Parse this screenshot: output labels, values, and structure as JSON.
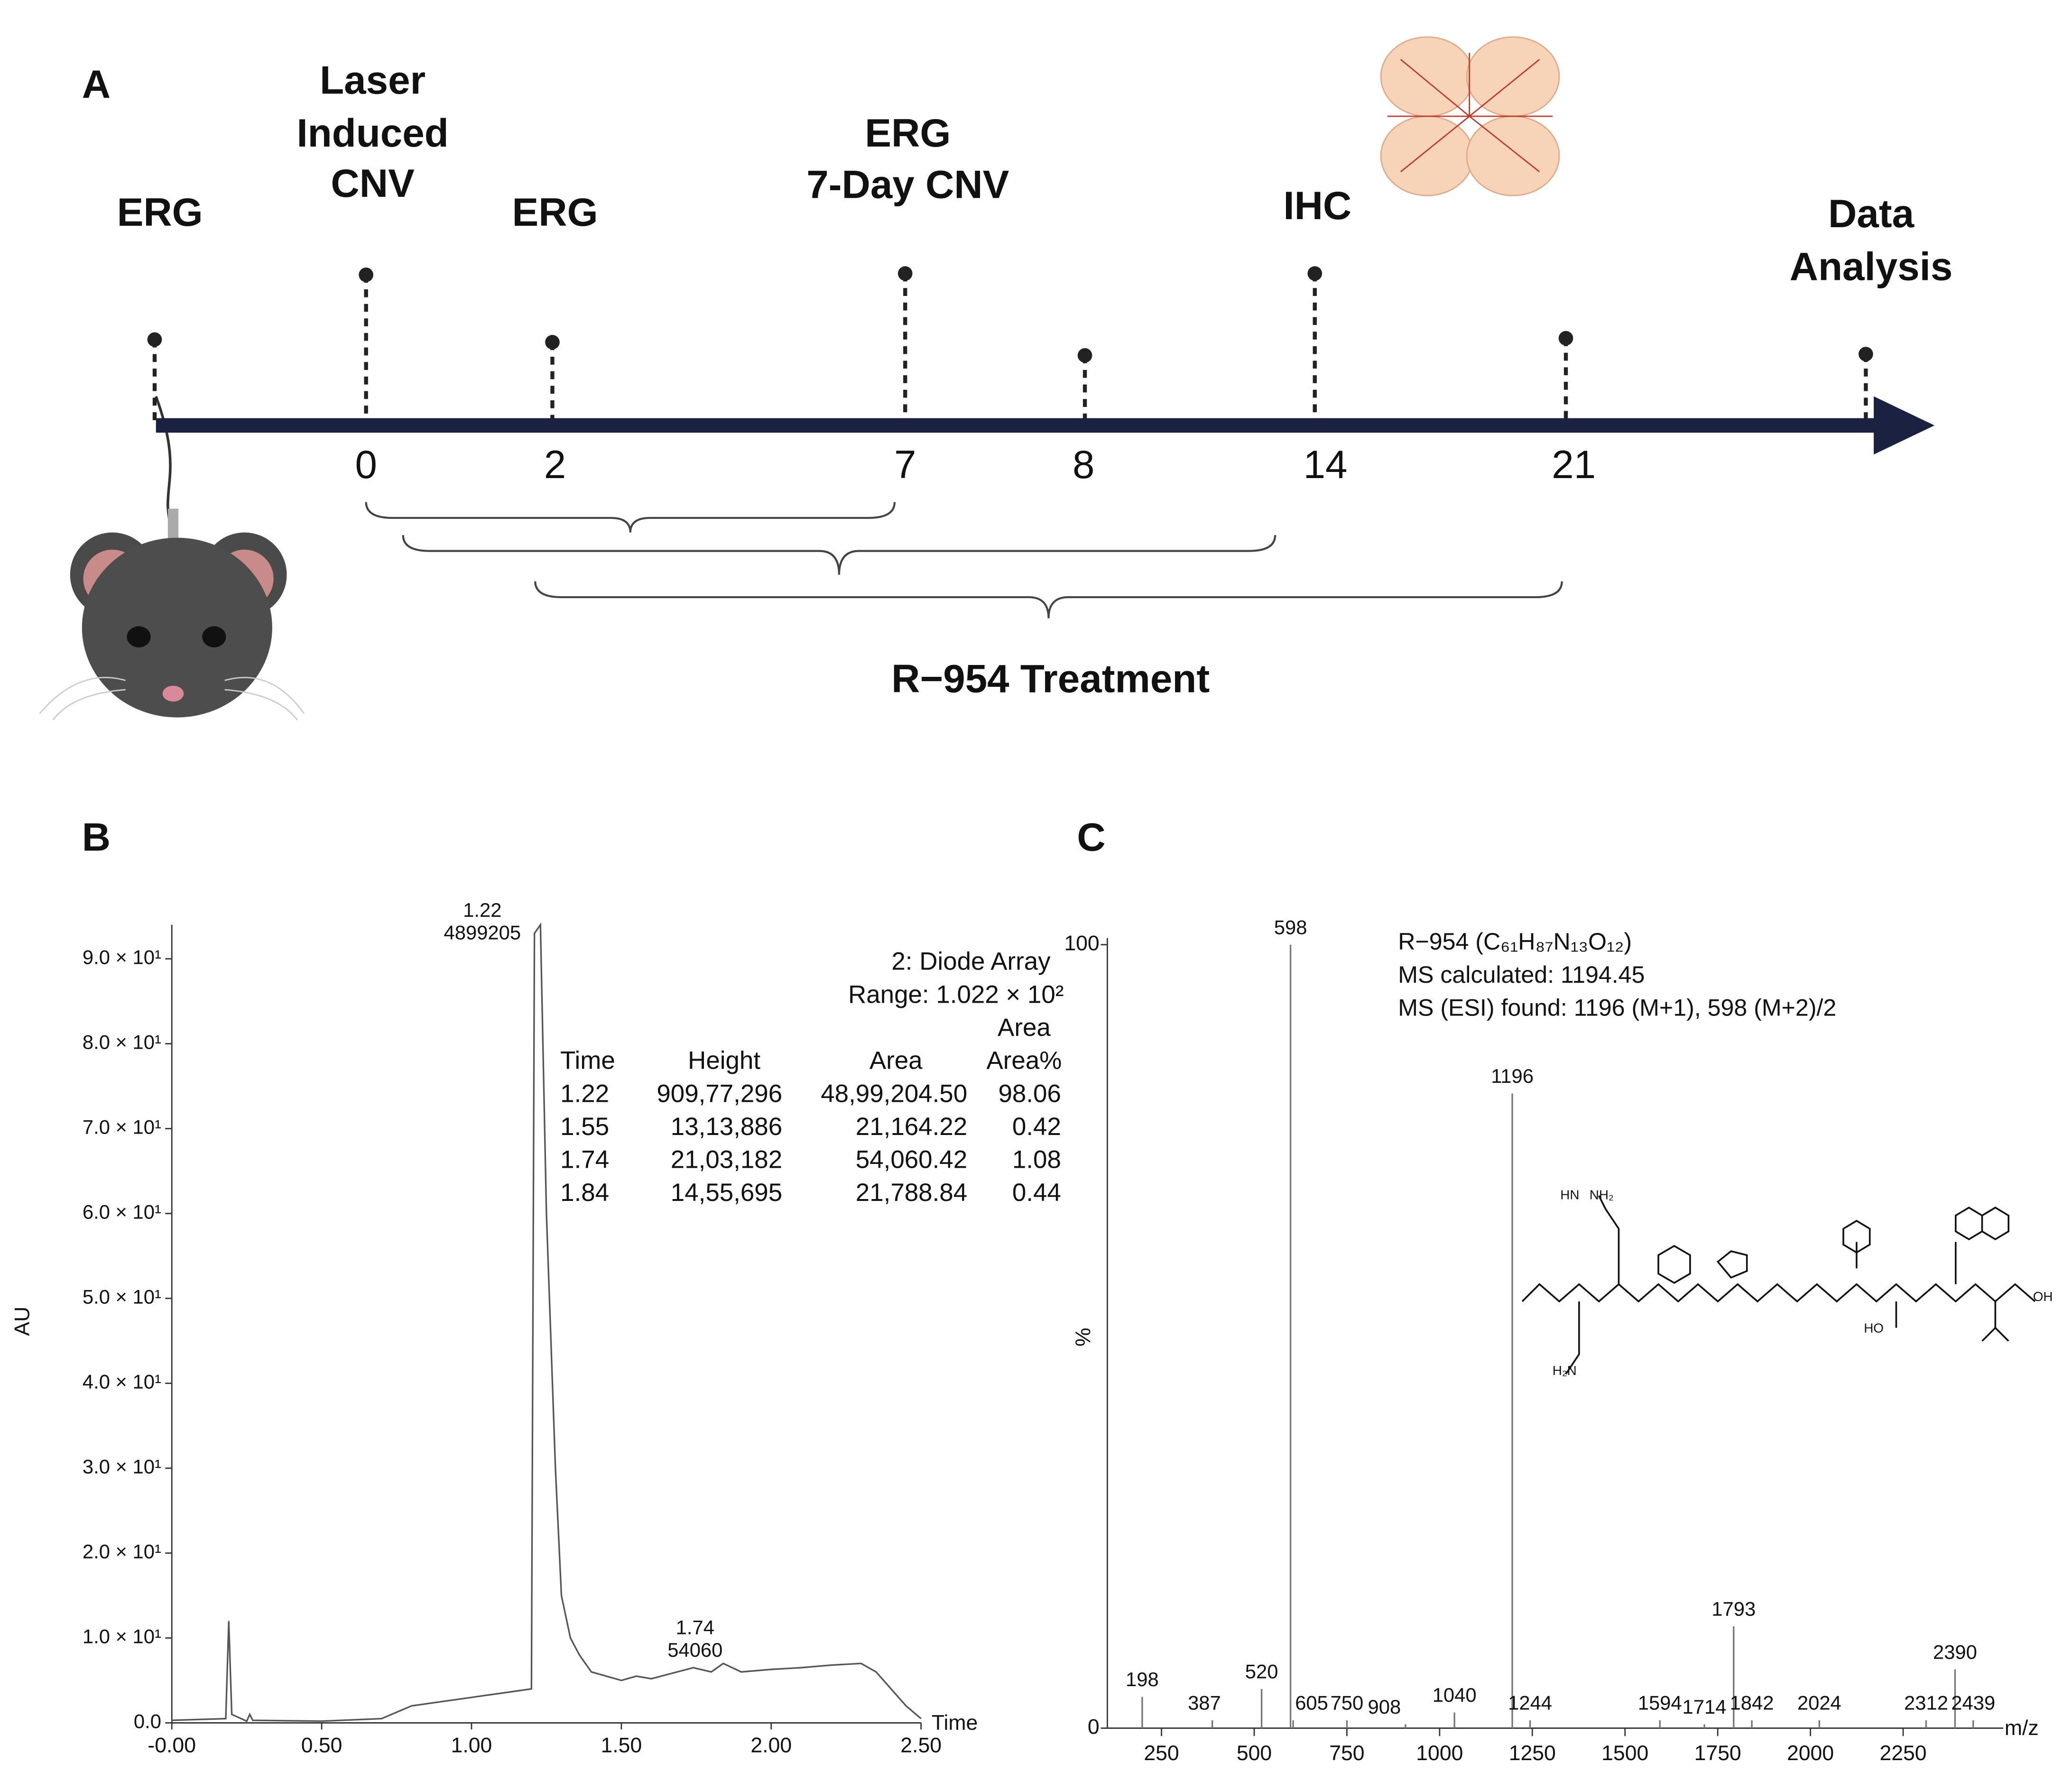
{
  "panels": [
    "A",
    "B",
    "C"
  ],
  "timeline": {
    "events": [
      {
        "label": [
          "ERG"
        ]
      },
      {
        "label": [
          "Laser",
          "Induced",
          "CNV"
        ],
        "day": "0"
      },
      {
        "label": [
          "ERG"
        ],
        "day": "2"
      },
      {
        "label": [
          "ERG",
          "7-Day CNV"
        ],
        "day": "7"
      },
      {
        "day": "8"
      },
      {
        "label": [
          "IHC"
        ],
        "day": "14"
      },
      {
        "day": "21"
      },
      {
        "label": [
          "Data",
          "Analysis"
        ]
      }
    ],
    "treatment": "R−954  Treatment"
  },
  "chart_data": [
    {
      "type": "line",
      "x_label": "Time",
      "y_label": "AU",
      "x": [
        0,
        0.18,
        0.19,
        0.2,
        0.25,
        0.26,
        0.27,
        0.5,
        0.7,
        0.8,
        1.0,
        1.1,
        1.2,
        1.21,
        1.23,
        1.25,
        1.28,
        1.3,
        1.33,
        1.36,
        1.4,
        1.45,
        1.5,
        1.55,
        1.6,
        1.74,
        1.8,
        1.84,
        1.9,
        2.0,
        2.1,
        2.2,
        2.3,
        2.35,
        2.4,
        2.45,
        2.5
      ],
      "series": [
        {
          "name": "2: Diode Array",
          "color": "#555555",
          "values": [
            0.3,
            0.5,
            12,
            1,
            0.2,
            1,
            0.3,
            0.2,
            0.5,
            2,
            3,
            3.5,
            4,
            93,
            94,
            60,
            30,
            15,
            10,
            8,
            6,
            5.5,
            5,
            5.5,
            5.2,
            6.5,
            6,
            7,
            6,
            6.3,
            6.5,
            6.8,
            7,
            6,
            4,
            2,
            0.5
          ]
        }
      ],
      "xlim": [
        0,
        2.5
      ],
      "xticks": [
        {
          "value": 0,
          "label": "-0.00"
        },
        {
          "value": 0.5,
          "label": "0.50"
        },
        {
          "value": 1,
          "label": "1.00"
        },
        {
          "value": 1.5,
          "label": "1.50"
        },
        {
          "value": 2,
          "label": "2.00"
        },
        {
          "value": 2.5,
          "label": "2.50"
        }
      ],
      "ylim": [
        0,
        94
      ],
      "yticks": [
        {
          "value": 0,
          "label": "0.0"
        },
        {
          "value": 10,
          "label": "1.0 × 10¹"
        },
        {
          "value": 20,
          "label": "2.0 × 10¹"
        },
        {
          "value": 30,
          "label": "3.0 × 10¹"
        },
        {
          "value": 40,
          "label": "4.0 × 10¹"
        },
        {
          "value": 50,
          "label": "5.0 × 10¹"
        },
        {
          "value": 60,
          "label": "6.0 × 10¹"
        },
        {
          "value": 70,
          "label": "7.0 × 10¹"
        },
        {
          "value": 80,
          "label": "8.0 × 10¹"
        },
        {
          "value": 90,
          "label": "9.0 × 10¹"
        }
      ],
      "annotations": [
        [
          "1.22",
          "4899205"
        ],
        [
          "1.74",
          "54060"
        ]
      ],
      "table": {
        "title": "2: Diode Array",
        "range": "Range: 1.022 × 10²",
        "header_top": "Area",
        "columns": [
          "Time",
          "Height",
          "Area",
          "Area%"
        ],
        "rows": [
          [
            "1.22",
            "909,77,296",
            "48,99,204.50",
            "98.06"
          ],
          [
            "1.55",
            "13,13,886",
            "21,164.22",
            "0.42"
          ],
          [
            "1.74",
            "21,03,182",
            "54,060.42",
            "1.08"
          ],
          [
            "1.84",
            "14,55,695",
            "21,788.84",
            "0.44"
          ]
        ]
      }
    },
    {
      "type": "stick",
      "x_label": "m/z",
      "y_label": "%",
      "color": "#777777",
      "x": [
        198,
        387,
        520,
        598,
        605,
        750,
        908,
        1040,
        1196,
        1244,
        1594,
        1714,
        1793,
        1842,
        2024,
        2312,
        2390,
        2439
      ],
      "values": [
        4,
        1,
        5,
        100,
        1,
        1,
        0.5,
        2,
        81,
        1,
        1,
        0.5,
        13,
        1,
        1,
        1,
        7.5,
        1
      ],
      "xlim": [
        104,
        2520
      ],
      "xticks": [
        250,
        500,
        750,
        1000,
        1250,
        1500,
        1750,
        2000,
        2250
      ],
      "ylim": [
        0,
        100
      ],
      "yticks": [
        0,
        100
      ],
      "annotations": [
        "R−954 (C₆₁H₈₇N₁₃O₁₂)",
        "MS calculated: 1194.45",
        "MS (ESI) found: 1196 (M+1), 598 (M+2)/2"
      ],
      "structure": {
        "labels": [
          "HN",
          "NH₂",
          "H₂N",
          "HO",
          "OH"
        ]
      }
    }
  ]
}
